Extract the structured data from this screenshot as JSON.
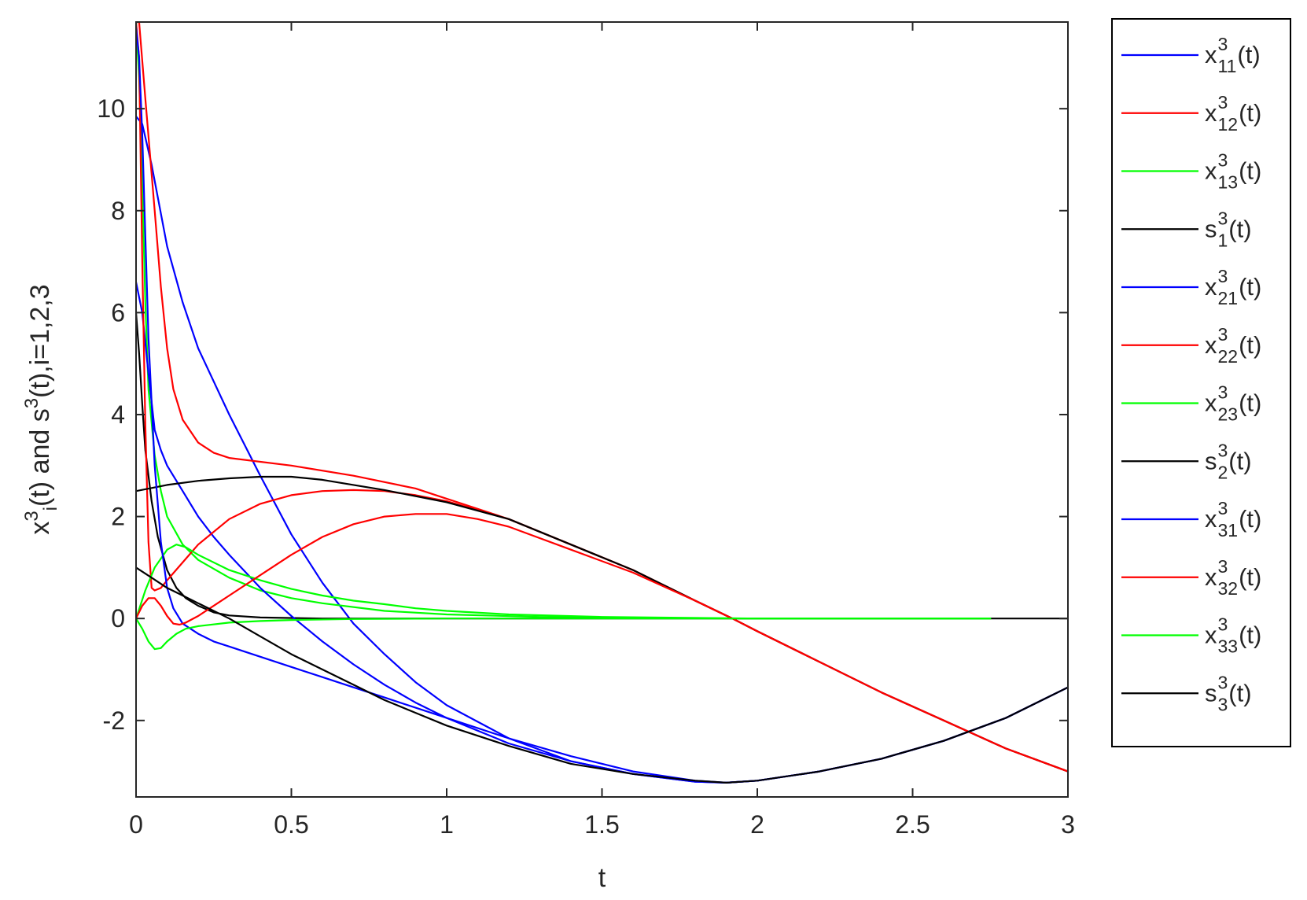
{
  "chart_data": {
    "type": "line",
    "xlabel": "t",
    "ylabel": {
      "parts": [
        {
          "text": "x"
        },
        {
          "text": "3",
          "sup": true
        },
        {
          "text": "i",
          "sub": true
        },
        {
          "text": "(t) and s"
        },
        {
          "text": "3",
          "sup": true
        },
        {
          "text": "(t),i=1,2,3"
        }
      ]
    },
    "xlim": [
      0,
      3
    ],
    "ylim": [
      -3.5,
      11.7
    ],
    "xticks": [
      0,
      0.5,
      1,
      1.5,
      2,
      2.5,
      3
    ],
    "xtick_labels": [
      "0",
      "0.5",
      "1",
      "1.5",
      "2",
      "2.5",
      "3"
    ],
    "yticks": [
      -2,
      0,
      2,
      4,
      6,
      8,
      10
    ],
    "ytick_labels": [
      "-2",
      "0",
      "2",
      "4",
      "6",
      "8",
      "10"
    ],
    "grid": false,
    "legend_position": "outside-right",
    "series": [
      {
        "name": "x",
        "sup": "3",
        "sub": "11",
        "suffix": "(t)",
        "color": "#0000ff",
        "points": [
          [
            0,
            9.85
          ],
          [
            0.02,
            9.7
          ],
          [
            0.05,
            8.9
          ],
          [
            0.1,
            7.3
          ],
          [
            0.15,
            6.2
          ],
          [
            0.2,
            5.3
          ],
          [
            0.3,
            4.0
          ],
          [
            0.4,
            2.8
          ],
          [
            0.5,
            1.65
          ],
          [
            0.6,
            0.7
          ],
          [
            0.7,
            -0.1
          ],
          [
            0.8,
            -0.7
          ],
          [
            0.9,
            -1.25
          ],
          [
            1.0,
            -1.7
          ],
          [
            1.2,
            -2.35
          ],
          [
            1.4,
            -2.8
          ],
          [
            1.6,
            -3.05
          ],
          [
            1.8,
            -3.2
          ],
          [
            1.9,
            -3.22
          ],
          [
            2.0,
            -3.18
          ],
          [
            2.2,
            -3.0
          ],
          [
            2.4,
            -2.75
          ],
          [
            2.6,
            -2.4
          ],
          [
            2.8,
            -1.95
          ],
          [
            3.0,
            -1.35
          ]
        ]
      },
      {
        "name": "x",
        "sup": "3",
        "sub": "12",
        "suffix": "(t)",
        "color": "#ff0000",
        "points": [
          [
            0,
            11.7
          ],
          [
            0.01,
            11.7
          ],
          [
            0.03,
            10.2
          ],
          [
            0.06,
            8.0
          ],
          [
            0.08,
            6.5
          ],
          [
            0.1,
            5.3
          ],
          [
            0.12,
            4.5
          ],
          [
            0.15,
            3.9
          ],
          [
            0.2,
            3.45
          ],
          [
            0.25,
            3.25
          ],
          [
            0.3,
            3.15
          ],
          [
            0.5,
            3.0
          ],
          [
            0.7,
            2.8
          ],
          [
            0.9,
            2.55
          ],
          [
            1.0,
            2.35
          ],
          [
            1.2,
            1.95
          ],
          [
            1.4,
            1.45
          ],
          [
            1.6,
            0.95
          ],
          [
            1.8,
            0.35
          ],
          [
            1.92,
            0.0
          ],
          [
            2.0,
            -0.25
          ],
          [
            2.2,
            -0.85
          ],
          [
            2.4,
            -1.45
          ],
          [
            2.6,
            -2.0
          ],
          [
            2.8,
            -2.55
          ],
          [
            3.0,
            -3.0
          ]
        ]
      },
      {
        "name": "x",
        "sup": "3",
        "sub": "13",
        "suffix": "(t)",
        "color": "#00ff00",
        "points": [
          [
            0,
            11.7
          ],
          [
            0.01,
            10.6
          ],
          [
            0.02,
            8.5
          ],
          [
            0.03,
            6.2
          ],
          [
            0.04,
            4.5
          ],
          [
            0.06,
            3.2
          ],
          [
            0.08,
            2.5
          ],
          [
            0.1,
            2.0
          ],
          [
            0.15,
            1.45
          ],
          [
            0.2,
            1.15
          ],
          [
            0.3,
            0.8
          ],
          [
            0.4,
            0.55
          ],
          [
            0.5,
            0.4
          ],
          [
            0.6,
            0.3
          ],
          [
            0.8,
            0.15
          ],
          [
            1.0,
            0.08
          ],
          [
            1.3,
            0.03
          ],
          [
            1.6,
            0.01
          ],
          [
            2.0,
            0.0
          ],
          [
            2.75,
            0.0
          ]
        ]
      },
      {
        "name": "s",
        "sup": "3",
        "sub": "1",
        "suffix": "(t)",
        "color": "#000000",
        "points": [
          [
            0,
            6.0
          ],
          [
            0.01,
            5.2
          ],
          [
            0.02,
            4.2
          ],
          [
            0.03,
            3.3
          ],
          [
            0.05,
            2.3
          ],
          [
            0.07,
            1.6
          ],
          [
            0.1,
            0.95
          ],
          [
            0.13,
            0.6
          ],
          [
            0.16,
            0.4
          ],
          [
            0.2,
            0.25
          ],
          [
            0.25,
            0.12
          ],
          [
            0.3,
            0.06
          ],
          [
            0.4,
            0.02
          ],
          [
            0.6,
            0.0
          ],
          [
            1.5,
            0.0
          ],
          [
            3.0,
            0.0
          ]
        ]
      },
      {
        "name": "x",
        "sup": "3",
        "sub": "21",
        "suffix": "(t)",
        "color": "#0000ff",
        "points": [
          [
            0,
            6.6
          ],
          [
            0.02,
            6.0
          ],
          [
            0.04,
            4.8
          ],
          [
            0.06,
            3.7
          ],
          [
            0.08,
            3.3
          ],
          [
            0.1,
            3.0
          ],
          [
            0.15,
            2.5
          ],
          [
            0.2,
            2.0
          ],
          [
            0.25,
            1.6
          ],
          [
            0.3,
            1.25
          ],
          [
            0.4,
            0.6
          ],
          [
            0.5,
            0.05
          ],
          [
            0.6,
            -0.45
          ],
          [
            0.7,
            -0.9
          ],
          [
            0.8,
            -1.3
          ],
          [
            0.9,
            -1.65
          ],
          [
            1.0,
            -1.95
          ],
          [
            1.2,
            -2.45
          ],
          [
            1.4,
            -2.8
          ],
          [
            1.6,
            -3.05
          ],
          [
            1.8,
            -3.2
          ],
          [
            1.9,
            -3.22
          ],
          [
            2.0,
            -3.18
          ],
          [
            2.2,
            -3.0
          ],
          [
            2.4,
            -2.75
          ],
          [
            2.6,
            -2.4
          ],
          [
            2.8,
            -1.95
          ],
          [
            3.0,
            -1.35
          ]
        ]
      },
      {
        "name": "x",
        "sup": "3",
        "sub": "22",
        "suffix": "(t)",
        "color": "#ff0000",
        "points": [
          [
            0,
            11.7
          ],
          [
            0.01,
            11.0
          ],
          [
            0.02,
            7.0
          ],
          [
            0.03,
            3.8
          ],
          [
            0.04,
            1.5
          ],
          [
            0.05,
            0.6
          ],
          [
            0.06,
            0.55
          ],
          [
            0.08,
            0.6
          ],
          [
            0.1,
            0.75
          ],
          [
            0.15,
            1.1
          ],
          [
            0.2,
            1.45
          ],
          [
            0.3,
            1.95
          ],
          [
            0.4,
            2.25
          ],
          [
            0.5,
            2.42
          ],
          [
            0.6,
            2.5
          ],
          [
            0.7,
            2.52
          ],
          [
            0.8,
            2.5
          ],
          [
            0.9,
            2.42
          ],
          [
            1.0,
            2.3
          ],
          [
            1.2,
            1.95
          ],
          [
            1.4,
            1.45
          ],
          [
            1.6,
            0.95
          ],
          [
            1.8,
            0.35
          ],
          [
            1.92,
            0.0
          ],
          [
            2.0,
            -0.25
          ],
          [
            2.2,
            -0.85
          ],
          [
            2.4,
            -1.45
          ],
          [
            2.6,
            -2.0
          ],
          [
            2.8,
            -2.55
          ],
          [
            3.0,
            -3.0
          ]
        ]
      },
      {
        "name": "x",
        "sup": "3",
        "sub": "23",
        "suffix": "(t)",
        "color": "#00ff00",
        "points": [
          [
            0,
            0.0
          ],
          [
            0.03,
            0.55
          ],
          [
            0.06,
            1.0
          ],
          [
            0.1,
            1.35
          ],
          [
            0.13,
            1.45
          ],
          [
            0.16,
            1.4
          ],
          [
            0.2,
            1.25
          ],
          [
            0.3,
            0.95
          ],
          [
            0.4,
            0.75
          ],
          [
            0.5,
            0.58
          ],
          [
            0.6,
            0.45
          ],
          [
            0.7,
            0.35
          ],
          [
            0.8,
            0.28
          ],
          [
            0.9,
            0.2
          ],
          [
            1.0,
            0.15
          ],
          [
            1.2,
            0.08
          ],
          [
            1.5,
            0.03
          ],
          [
            2.0,
            0.0
          ],
          [
            2.75,
            0.0
          ]
        ]
      },
      {
        "name": "s",
        "sup": "3",
        "sub": "2",
        "suffix": "(t)",
        "color": "#000000",
        "points": [
          [
            0,
            2.5
          ],
          [
            0.1,
            2.62
          ],
          [
            0.2,
            2.7
          ],
          [
            0.3,
            2.75
          ],
          [
            0.4,
            2.78
          ],
          [
            0.5,
            2.78
          ],
          [
            0.6,
            2.72
          ],
          [
            0.7,
            2.62
          ],
          [
            0.8,
            2.52
          ],
          [
            0.9,
            2.4
          ],
          [
            1.0,
            2.28
          ],
          [
            1.2,
            1.95
          ],
          [
            1.4,
            1.45
          ],
          [
            1.6,
            0.95
          ],
          [
            1.8,
            0.35
          ],
          [
            1.92,
            0.0
          ],
          [
            2.0,
            -0.25
          ],
          [
            2.2,
            -0.85
          ],
          [
            2.4,
            -1.45
          ],
          [
            2.6,
            -2.0
          ],
          [
            2.8,
            -2.55
          ],
          [
            3.0,
            -3.0
          ]
        ]
      },
      {
        "name": "x",
        "sup": "3",
        "sub": "31",
        "suffix": "(t)",
        "color": "#0000ff",
        "points": [
          [
            0,
            11.6
          ],
          [
            0.01,
            11.0
          ],
          [
            0.02,
            9.5
          ],
          [
            0.03,
            7.5
          ],
          [
            0.04,
            5.5
          ],
          [
            0.06,
            3.0
          ],
          [
            0.08,
            1.5
          ],
          [
            0.1,
            0.6
          ],
          [
            0.12,
            0.2
          ],
          [
            0.15,
            -0.1
          ],
          [
            0.2,
            -0.3
          ],
          [
            0.25,
            -0.45
          ],
          [
            0.3,
            -0.55
          ],
          [
            0.4,
            -0.75
          ],
          [
            0.5,
            -0.95
          ],
          [
            0.6,
            -1.15
          ],
          [
            0.7,
            -1.35
          ],
          [
            0.8,
            -1.55
          ],
          [
            0.9,
            -1.75
          ],
          [
            1.0,
            -1.95
          ],
          [
            1.2,
            -2.35
          ],
          [
            1.4,
            -2.7
          ],
          [
            1.6,
            -3.0
          ],
          [
            1.8,
            -3.18
          ],
          [
            1.9,
            -3.22
          ],
          [
            2.0,
            -3.18
          ],
          [
            2.2,
            -3.0
          ],
          [
            2.4,
            -2.75
          ],
          [
            2.6,
            -2.4
          ],
          [
            2.8,
            -1.95
          ],
          [
            3.0,
            -1.35
          ]
        ]
      },
      {
        "name": "x",
        "sup": "3",
        "sub": "32",
        "suffix": "(t)",
        "color": "#ff0000",
        "points": [
          [
            0,
            0.0
          ],
          [
            0.02,
            0.25
          ],
          [
            0.04,
            0.4
          ],
          [
            0.06,
            0.4
          ],
          [
            0.08,
            0.25
          ],
          [
            0.1,
            0.05
          ],
          [
            0.12,
            -0.1
          ],
          [
            0.14,
            -0.12
          ],
          [
            0.16,
            -0.08
          ],
          [
            0.2,
            0.05
          ],
          [
            0.3,
            0.45
          ],
          [
            0.4,
            0.85
          ],
          [
            0.5,
            1.25
          ],
          [
            0.6,
            1.6
          ],
          [
            0.7,
            1.85
          ],
          [
            0.8,
            2.0
          ],
          [
            0.9,
            2.05
          ],
          [
            1.0,
            2.05
          ],
          [
            1.1,
            1.95
          ],
          [
            1.2,
            1.8
          ],
          [
            1.4,
            1.35
          ],
          [
            1.6,
            0.9
          ],
          [
            1.8,
            0.35
          ],
          [
            1.92,
            0.0
          ],
          [
            2.0,
            -0.25
          ],
          [
            2.2,
            -0.85
          ],
          [
            2.4,
            -1.45
          ],
          [
            2.6,
            -2.0
          ],
          [
            2.8,
            -2.55
          ],
          [
            3.0,
            -3.0
          ]
        ]
      },
      {
        "name": "x",
        "sup": "3",
        "sub": "33",
        "suffix": "(t)",
        "color": "#00ff00",
        "points": [
          [
            0,
            0.0
          ],
          [
            0.02,
            -0.2
          ],
          [
            0.04,
            -0.45
          ],
          [
            0.06,
            -0.6
          ],
          [
            0.08,
            -0.58
          ],
          [
            0.1,
            -0.45
          ],
          [
            0.13,
            -0.3
          ],
          [
            0.16,
            -0.2
          ],
          [
            0.2,
            -0.15
          ],
          [
            0.3,
            -0.08
          ],
          [
            0.4,
            -0.05
          ],
          [
            0.5,
            -0.03
          ],
          [
            0.7,
            -0.01
          ],
          [
            1.0,
            0.0
          ],
          [
            2.75,
            0.0
          ]
        ]
      },
      {
        "name": "s",
        "sup": "3",
        "sub": "3",
        "suffix": "(t)",
        "color": "#000000",
        "points": [
          [
            0,
            1.0
          ],
          [
            0.05,
            0.8
          ],
          [
            0.1,
            0.6
          ],
          [
            0.15,
            0.45
          ],
          [
            0.2,
            0.3
          ],
          [
            0.3,
            0.0
          ],
          [
            0.4,
            -0.35
          ],
          [
            0.5,
            -0.7
          ],
          [
            0.6,
            -1.0
          ],
          [
            0.7,
            -1.3
          ],
          [
            0.8,
            -1.6
          ],
          [
            0.9,
            -1.85
          ],
          [
            1.0,
            -2.1
          ],
          [
            1.2,
            -2.5
          ],
          [
            1.4,
            -2.85
          ],
          [
            1.6,
            -3.05
          ],
          [
            1.8,
            -3.18
          ],
          [
            1.9,
            -3.22
          ],
          [
            2.0,
            -3.18
          ],
          [
            2.2,
            -3.0
          ],
          [
            2.4,
            -2.75
          ],
          [
            2.6,
            -2.4
          ],
          [
            2.8,
            -1.95
          ],
          [
            3.0,
            -1.35
          ]
        ]
      }
    ]
  }
}
